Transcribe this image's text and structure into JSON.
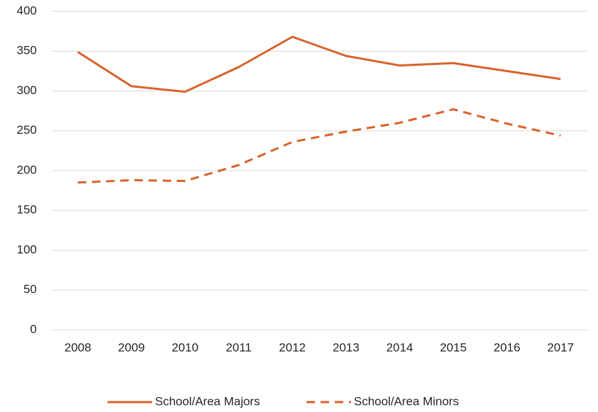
{
  "chart_data": {
    "type": "line",
    "categories": [
      "2008",
      "2009",
      "2010",
      "2011",
      "2012",
      "2013",
      "2014",
      "2015",
      "2016",
      "2017"
    ],
    "series": [
      {
        "name": "School/Area Majors",
        "color": "#d9622b",
        "line_style": "solid",
        "values": [
          349,
          306,
          299,
          330,
          368,
          344,
          332,
          335,
          325,
          315
        ]
      },
      {
        "name": "School/Area Minors",
        "color": "#d9622b",
        "line_style": "dashed",
        "values": [
          185,
          188,
          187,
          207,
          236,
          249,
          260,
          277,
          259,
          244
        ]
      }
    ],
    "ylim": [
      0,
      400
    ],
    "yticks": [
      0,
      50,
      100,
      150,
      200,
      250,
      300,
      350,
      400
    ],
    "grid": true,
    "legend": "bottom"
  }
}
